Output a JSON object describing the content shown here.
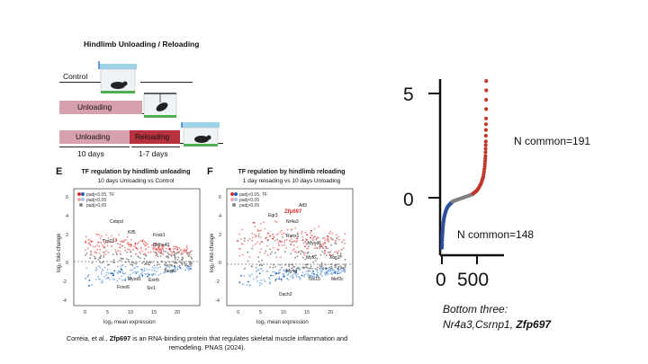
{
  "figure": {
    "title": "Hindlimb Unloading / Reloading",
    "rows": {
      "control": "Control",
      "unloading": "Unloading",
      "unloading2": "Unloading",
      "reloading": "Reloading"
    },
    "durations": {
      "unloading": "10 days",
      "reloading": "1-7 days"
    },
    "panel_e": {
      "letter": "E",
      "title": "TF regulation by hindlimb unloading",
      "subtitle": "10 days Unloading vs Control",
      "legend": [
        "padj<0.05, TF",
        "padj<0.05",
        "padj>0.05"
      ],
      "ylabel": "log₂ fold-change",
      "xlabel": "log₂ mean expression",
      "yticks": [
        "6",
        "4",
        "2",
        "0",
        "-2",
        "-4"
      ],
      "xticks": [
        "0",
        "5",
        "10",
        "15",
        "20"
      ],
      "genes": [
        "Cebpd",
        "Klf5",
        "Foxk1",
        "Trp63",
        "Bhlhe40",
        "Tead1",
        "Myod1",
        "Esrrb",
        "Foxo6",
        "Six1"
      ]
    },
    "panel_f": {
      "letter": "F",
      "title": "TF regulation by hindlimb reloading",
      "subtitle": "1 day reloading vs 10 days Unloading",
      "legend": [
        "padj<0.05, TF",
        "padj<0.05",
        "padj>0.05"
      ],
      "ylabel": "log₂ fold-change",
      "xlabel": "log₂ mean expression",
      "yticks": [
        "6",
        "4",
        "2",
        "0",
        "-2",
        "-4"
      ],
      "xticks": [
        "0",
        "5",
        "10",
        "15",
        "20"
      ],
      "genes": [
        "Atf3",
        "Zfp697",
        "Egr3",
        "Nr4a3",
        "Runx1",
        "Myod1",
        "Xbp1",
        "Myf6",
        "Myog",
        "Tbx15",
        "Mef2c",
        "Dach2"
      ]
    },
    "caption_pre": "Correia, et al., ",
    "caption_bold": "Zfp697",
    "caption_post": " is an RNA-binding protein that regulates skeletal muscle inflammation and remodeling. PNAS (2024)."
  },
  "rank_plot": {
    "ytick_5": "5",
    "ytick_0": "0",
    "xtick_0": "0",
    "xtick_500": "500",
    "up_label": "N common=191",
    "down_label": "N common=148",
    "colors": {
      "up": "#c0392b",
      "down": "#2f4f9f",
      "neutral": "#808080"
    }
  },
  "bottom_three": {
    "heading": "Bottom three:",
    "genes_plain": "Nr4a3,Csrnp1, ",
    "gene_bold": "Zfp697"
  },
  "chart_data": {
    "type": "scatter",
    "title": "",
    "xlabel": "",
    "ylabel": "",
    "xlim": [
      0,
      700
    ],
    "ylim": [
      -2.6,
      6
    ],
    "x_ticks": [
      0,
      500
    ],
    "y_ticks": [
      0,
      5
    ],
    "series": [
      {
        "name": "N common=148",
        "color": "#2f4f9f",
        "x": [
          1,
          5,
          10,
          20,
          35,
          50,
          65,
          80,
          95,
          110,
          125,
          140,
          148
        ],
        "y": [
          -2.4,
          -1.9,
          -1.6,
          -1.2,
          -0.9,
          -0.7,
          -0.55,
          -0.45,
          -0.38,
          -0.32,
          -0.27,
          -0.23,
          -0.2
        ]
      },
      {
        "name": "",
        "color": "#808080",
        "x": [
          150,
          200,
          250,
          300,
          350,
          400,
          440
        ],
        "y": [
          -0.18,
          -0.12,
          -0.06,
          0.0,
          0.06,
          0.12,
          0.17
        ]
      },
      {
        "name": "N common=191",
        "color": "#c0392b",
        "x": [
          442,
          470,
          500,
          530,
          560,
          590,
          610,
          620,
          625,
          630,
          632
        ],
        "y": [
          0.2,
          0.26,
          0.35,
          0.5,
          0.7,
          1.0,
          1.5,
          2.0,
          2.7,
          3.8,
          5.6
        ]
      }
    ]
  }
}
